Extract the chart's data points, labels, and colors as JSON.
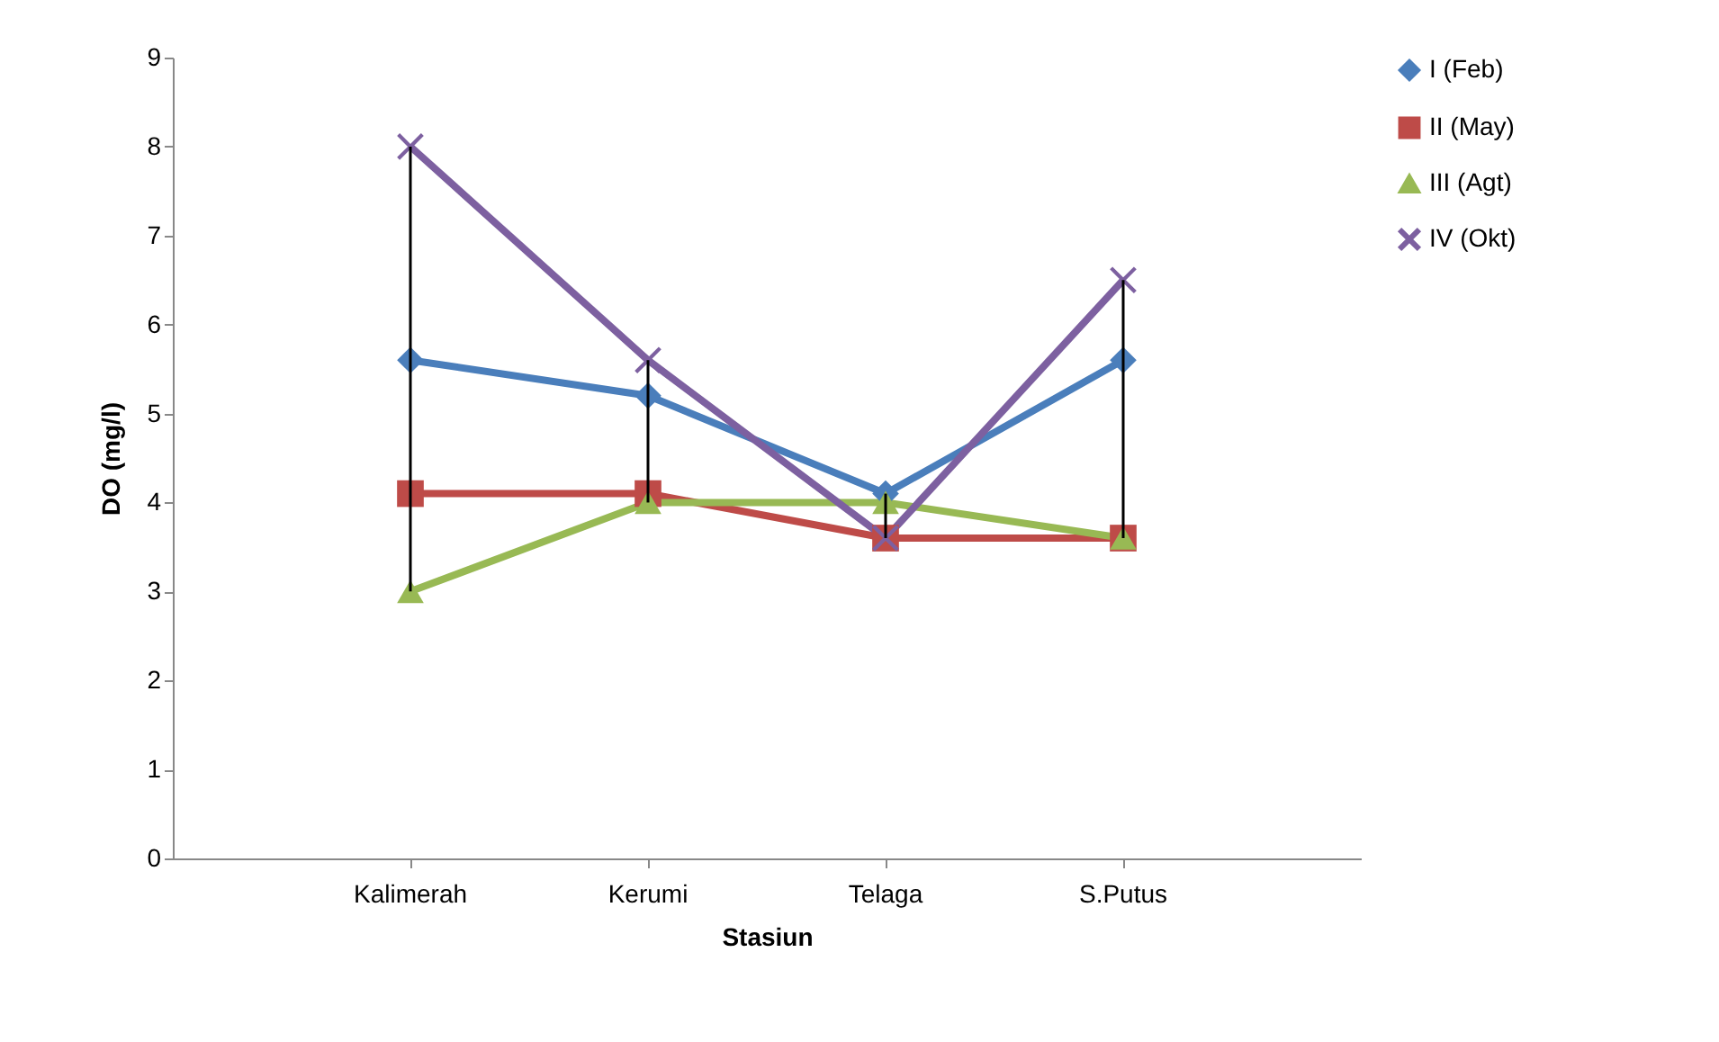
{
  "chart_data": {
    "type": "line",
    "xlabel": "Stasiun",
    "ylabel": "DO (mg/l)",
    "categories": [
      "Kalimerah",
      "Kerumi",
      "Telaga",
      "S.Putus"
    ],
    "ylim": [
      0,
      9
    ],
    "yticks": [
      0,
      1,
      2,
      3,
      4,
      5,
      6,
      7,
      8,
      9
    ],
    "grid": false,
    "legend": "right",
    "series": [
      {
        "name": "I (Feb)",
        "color": "#4a7ebb",
        "marker": "diamond",
        "values": [
          5.6,
          5.2,
          4.1,
          5.6
        ]
      },
      {
        "name": "II (May)",
        "color": "#be4b48",
        "marker": "square",
        "values": [
          4.1,
          4.1,
          3.6,
          3.6
        ]
      },
      {
        "name": "III (Agt)",
        "color": "#98b954",
        "marker": "triangle",
        "values": [
          3.0,
          4.0,
          4.0,
          3.6
        ]
      },
      {
        "name": "IV (Okt)",
        "color": "#7d60a0",
        "marker": "cross",
        "values": [
          8.0,
          5.6,
          3.6,
          6.5
        ]
      },
      {
        "type": "bar",
        "color": "#000000",
        "base": [
          3.0,
          4.0,
          3.6,
          3.6
        ],
        "values": [
          5.0,
          1.6,
          0.5,
          2.9
        ]
      }
    ]
  }
}
